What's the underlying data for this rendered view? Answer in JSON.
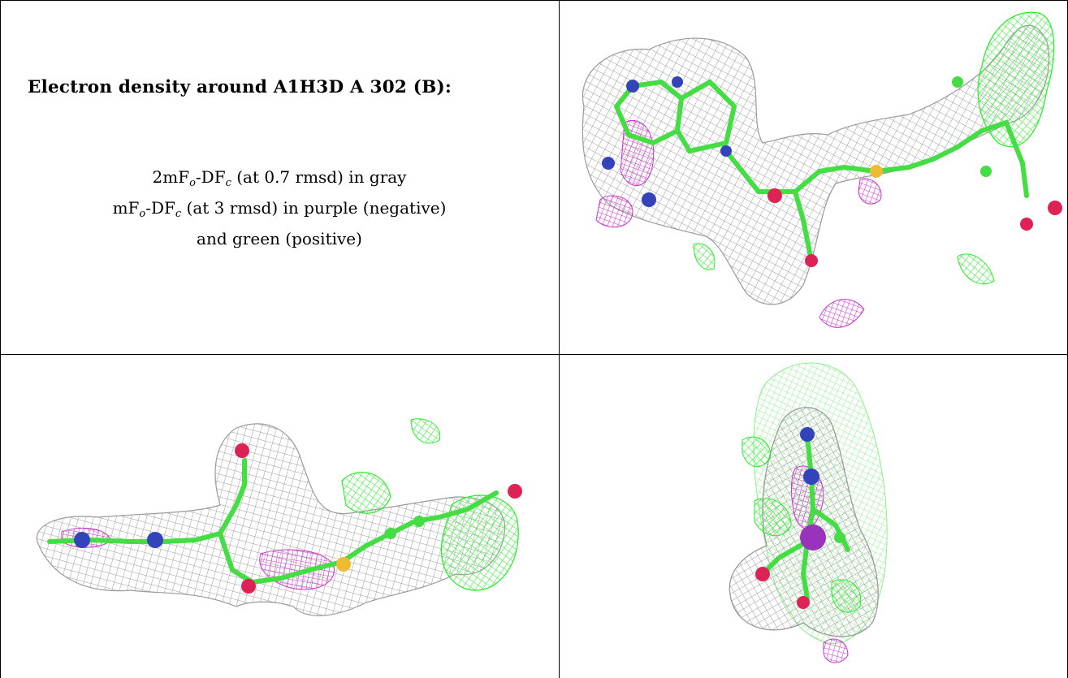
{
  "caption": {
    "title": "Electron density around A1H3D A 302 (B):",
    "line1": {
      "a": "2mF",
      "b": "o",
      "c": "-DF",
      "d": "c",
      "e": " (at 0.7 rmsd) in gray"
    },
    "line2": {
      "a": "mF",
      "b": "o",
      "c": "-DF",
      "d": "c",
      "e": " (at 3 rmsd) in purple (negative)"
    },
    "line3": "and green (positive)"
  },
  "colors": {
    "map_2fofc": "#9a9a9a",
    "map_negative": "#cc33cc",
    "map_positive": "#22ee22",
    "carbon": "#44dd44",
    "nitrogen": "#3344bb",
    "oxygen": "#dd2255",
    "sulfur": "#eebb33"
  },
  "panels": [
    {
      "name": "density-view-1",
      "kind": "electron density map rendering"
    },
    {
      "name": "density-view-2",
      "kind": "electron density map rendering"
    },
    {
      "name": "density-view-3",
      "kind": "electron density map rendering"
    }
  ]
}
